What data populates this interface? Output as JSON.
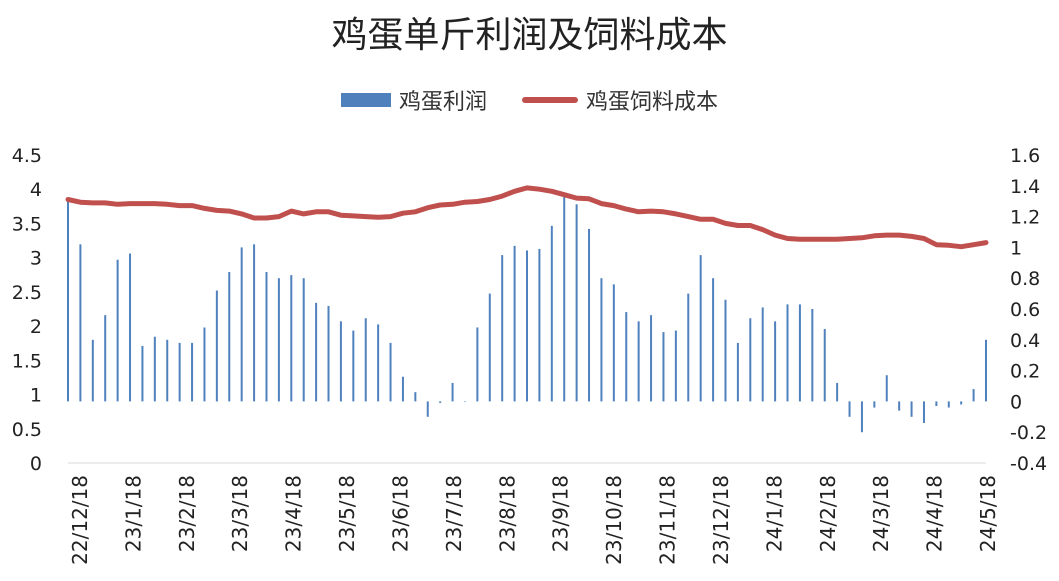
{
  "chart_data": {
    "type": "bar+line",
    "title": "鸡蛋单斤利润及饲料成本",
    "legend_position": "top",
    "grid": false,
    "x_tick_labels": [
      "22/12/18",
      "23/1/18",
      "23/2/18",
      "23/3/18",
      "23/4/18",
      "23/5/18",
      "23/6/18",
      "23/7/18",
      "23/8/18",
      "23/9/18",
      "23/10/18",
      "23/11/18",
      "23/12/18",
      "24/1/18",
      "24/2/18",
      "24/3/18",
      "24/4/18",
      "24/5/18"
    ],
    "y_left": {
      "min": 0,
      "max": 4.5,
      "ticks": [
        "0",
        "0.5",
        "1",
        "1.5",
        "2",
        "2.5",
        "3",
        "3.5",
        "4",
        "4.5"
      ]
    },
    "y_right": {
      "min": -0.4,
      "max": 1.6,
      "ticks": [
        "-0.4",
        "-0.2",
        "0",
        "0.2",
        "0.4",
        "0.6",
        "0.8",
        "1",
        "1.2",
        "1.4",
        "1.6"
      ]
    },
    "series": [
      {
        "name": "鸡蛋利润",
        "kind": "bar",
        "axis": "right",
        "color": "#4F81BD",
        "values": [
          1.3,
          1.02,
          0.4,
          0.56,
          0.92,
          0.96,
          0.36,
          0.42,
          0.4,
          0.38,
          0.38,
          0.48,
          0.72,
          0.84,
          1.0,
          1.02,
          0.84,
          0.8,
          0.82,
          0.8,
          0.64,
          0.62,
          0.52,
          0.46,
          0.54,
          0.5,
          0.38,
          0.16,
          0.06,
          -0.1,
          -0.01,
          0.12,
          0.0,
          0.48,
          0.7,
          0.95,
          1.01,
          0.98,
          0.99,
          1.14,
          1.33,
          1.28,
          1.12,
          0.8,
          0.76,
          0.58,
          0.52,
          0.56,
          0.45,
          0.46,
          0.7,
          0.95,
          0.8,
          0.66,
          0.38,
          0.54,
          0.61,
          0.52,
          0.63,
          0.63,
          0.6,
          0.47,
          0.12,
          -0.1,
          -0.2,
          -0.04,
          0.17,
          -0.06,
          -0.1,
          -0.14,
          -0.03,
          -0.04,
          -0.02,
          0.08,
          0.4
        ]
      },
      {
        "name": "鸡蛋饲料成本",
        "kind": "line",
        "axis": "left",
        "color": "#C0504D",
        "values": [
          3.85,
          3.81,
          3.8,
          3.8,
          3.78,
          3.79,
          3.79,
          3.79,
          3.78,
          3.76,
          3.76,
          3.72,
          3.69,
          3.68,
          3.64,
          3.58,
          3.58,
          3.6,
          3.68,
          3.64,
          3.67,
          3.67,
          3.62,
          3.61,
          3.6,
          3.59,
          3.6,
          3.65,
          3.67,
          3.73,
          3.77,
          3.78,
          3.81,
          3.82,
          3.85,
          3.9,
          3.97,
          4.02,
          4.0,
          3.97,
          3.92,
          3.87,
          3.86,
          3.79,
          3.76,
          3.71,
          3.67,
          3.68,
          3.67,
          3.64,
          3.6,
          3.56,
          3.56,
          3.5,
          3.47,
          3.47,
          3.41,
          3.33,
          3.28,
          3.27,
          3.27,
          3.27,
          3.27,
          3.28,
          3.29,
          3.32,
          3.33,
          3.33,
          3.31,
          3.28,
          3.19,
          3.18,
          3.16,
          3.19,
          3.22
        ]
      }
    ]
  }
}
